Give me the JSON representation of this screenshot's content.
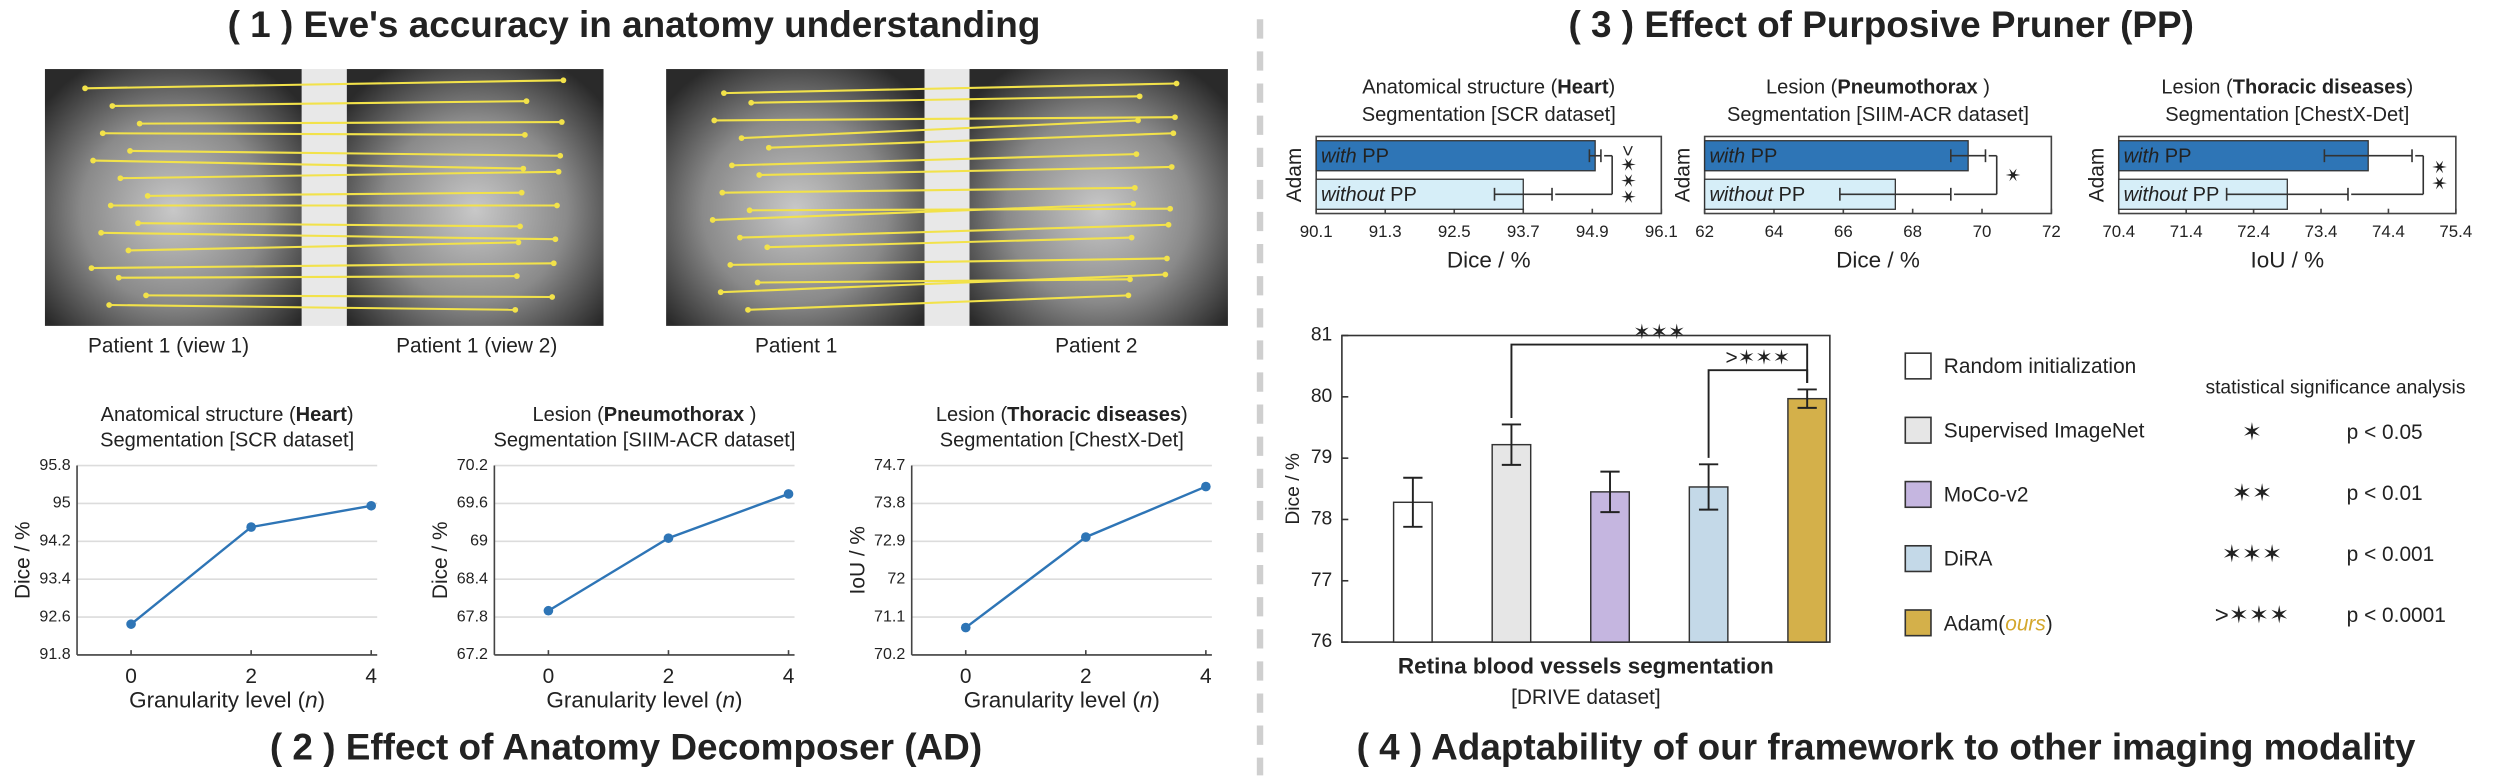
{
  "panel_titles": [
    "( 1 ) Eve's accuracy in anatomy understanding",
    "( 2 ) Effect of Anatomy Decomposer (AD)",
    "( 3 ) Effect of Purposive Pruner (PP)",
    "( 4 ) Adaptability of our framework to other imaging modality"
  ],
  "image_captions": [
    "Patient 1 (view 1)",
    "Patient 1 (view 2)",
    "Patient 1",
    "Patient 2"
  ],
  "chart_data": [
    {
      "type": "line",
      "title": {
        "before": "Anatomical structure (",
        "bold": "Heart",
        "after": ")"
      },
      "subtitle": "Segmentation [SCR dataset]",
      "x": [
        0,
        2,
        4
      ],
      "values": [
        92.45,
        94.5,
        94.95
      ],
      "color": "#2e75b6",
      "xlim": [
        -0.9,
        4.1
      ],
      "xticks": [
        0,
        2,
        4
      ],
      "ylim": [
        91.8,
        95.8
      ],
      "yticks": [
        91.8,
        92.6,
        93.4,
        94.2,
        95,
        95.8
      ],
      "xlabel": {
        "before": "Granularity level (",
        "italic": "n",
        "after": ")"
      },
      "ylabel": "Dice / %",
      "grid": true
    },
    {
      "type": "line",
      "title": {
        "before": "Lesion (",
        "bold": "Pneumothorax",
        "after": " )"
      },
      "subtitle": "Segmentation [SIIM-ACR dataset]",
      "x": [
        0,
        2,
        4
      ],
      "values": [
        67.9,
        69.05,
        69.75
      ],
      "color": "#2e75b6",
      "xlim": [
        -0.9,
        4.1
      ],
      "xticks": [
        0,
        2,
        4
      ],
      "ylim": [
        67.2,
        70.2
      ],
      "yticks": [
        67.2,
        67.8,
        68.4,
        69,
        69.6,
        70.2
      ],
      "xlabel": {
        "before": "Granularity level (",
        "italic": "n",
        "after": ")"
      },
      "ylabel": "Dice / %",
      "grid": true
    },
    {
      "type": "line",
      "title": {
        "before": "Lesion (",
        "bold": "Thoracic diseases",
        "after": ")"
      },
      "subtitle": "Segmentation [ChestX-Det]",
      "x": [
        0,
        2,
        4
      ],
      "values": [
        70.85,
        73.0,
        74.2
      ],
      "color": "#2e75b6",
      "xlim": [
        -0.9,
        4.1
      ],
      "xticks": [
        0,
        2,
        4
      ],
      "ylim": [
        70.2,
        74.7
      ],
      "yticks": [
        70.2,
        71.1,
        72,
        72.9,
        73.8,
        74.7
      ],
      "xlabel": {
        "before": "Granularity level (",
        "italic": "n",
        "after": ")"
      },
      "ylabel": "IoU / %",
      "grid": true
    },
    {
      "type": "hbar",
      "title": {
        "before": "Anatomical structure (",
        "bold": "Heart",
        "after": ")"
      },
      "subtitle": "Segmentation [SCR dataset]",
      "ylabel": "Adam",
      "categories": [
        {
          "italic": "with",
          "after": " PP"
        },
        {
          "italic": "without",
          "after": " PP"
        }
      ],
      "values": [
        94.95,
        93.7
      ],
      "errors": [
        0.1,
        0.5
      ],
      "colors": [
        "#2e75b6",
        "#d6eef8"
      ],
      "xlim": [
        90.1,
        96.1
      ],
      "xticks": [
        90.1,
        91.3,
        92.5,
        93.7,
        94.9,
        96.1
      ],
      "xlabel": "Dice / %",
      "significance": ">✶✶✶"
    },
    {
      "type": "hbar",
      "title": {
        "before": "Lesion (",
        "bold": "Pneumothorax",
        "after": " )"
      },
      "subtitle": "Segmentation [SIIM-ACR dataset]",
      "ylabel": "Adam",
      "categories": [
        {
          "italic": "with",
          "after": " PP"
        },
        {
          "italic": "without",
          "after": " PP"
        }
      ],
      "values": [
        69.6,
        67.5
      ],
      "errors": [
        0.5,
        1.6
      ],
      "colors": [
        "#2e75b6",
        "#d6eef8"
      ],
      "xlim": [
        62,
        72
      ],
      "xticks": [
        62,
        64,
        66,
        68,
        70,
        72
      ],
      "xlabel": "Dice / %",
      "significance": "✶"
    },
    {
      "type": "hbar",
      "title": {
        "before": "Lesion (",
        "bold": "Thoracic diseases",
        "after": ")"
      },
      "subtitle": "Segmentation [ChestX-Det]",
      "ylabel": "Adam",
      "categories": [
        {
          "italic": "with",
          "after": " PP"
        },
        {
          "italic": "without",
          "after": " PP"
        }
      ],
      "values": [
        74.1,
        72.9
      ],
      "errors": [
        0.65,
        0.9
      ],
      "colors": [
        "#2e75b6",
        "#d6eef8"
      ],
      "xlim": [
        70.4,
        75.4
      ],
      "xticks": [
        70.4,
        71.4,
        72.4,
        73.4,
        74.4,
        75.4
      ],
      "xlabel": "IoU / %",
      "significance": "✶✶"
    },
    {
      "type": "bar",
      "xlabel": "Retina blood vessels segmentation",
      "subtitle": "[DRIVE dataset]",
      "ylabel": "Dice / %",
      "categories": [
        "Random initialization",
        "Supervised ImageNet",
        "MoCo-v2",
        "DiRA",
        {
          "before": "Adam(",
          "italic": "ours",
          "after": ")"
        }
      ],
      "values": [
        78.28,
        79.22,
        78.45,
        78.53,
        79.97
      ],
      "errors": [
        0.4,
        0.33,
        0.33,
        0.37,
        0.15
      ],
      "colors": [
        "#ffffff",
        "#e6e6e6",
        "#c5b6e0",
        "#c4d9e8",
        "#d4b04a"
      ],
      "highlight_color": "#d4a72c",
      "ylim": [
        76,
        81
      ],
      "yticks": [
        76,
        77,
        78,
        79,
        80,
        81
      ],
      "annotations": [
        {
          "text": "✶✶✶",
          "from": 1,
          "to": 4
        },
        {
          "text": ">✶✶✶",
          "from": 3,
          "to": 4
        }
      ]
    }
  ],
  "significance_key": {
    "title": "statistical significance analysis",
    "rows": [
      {
        "symbol": "✶",
        "label": "p < 0.05"
      },
      {
        "symbol": "✶✶",
        "label": "p < 0.01"
      },
      {
        "symbol": "✶✶✶",
        "label": "p < 0.001"
      },
      {
        "symbol": ">✶✶✶",
        "label": "p < 0.0001"
      }
    ]
  }
}
